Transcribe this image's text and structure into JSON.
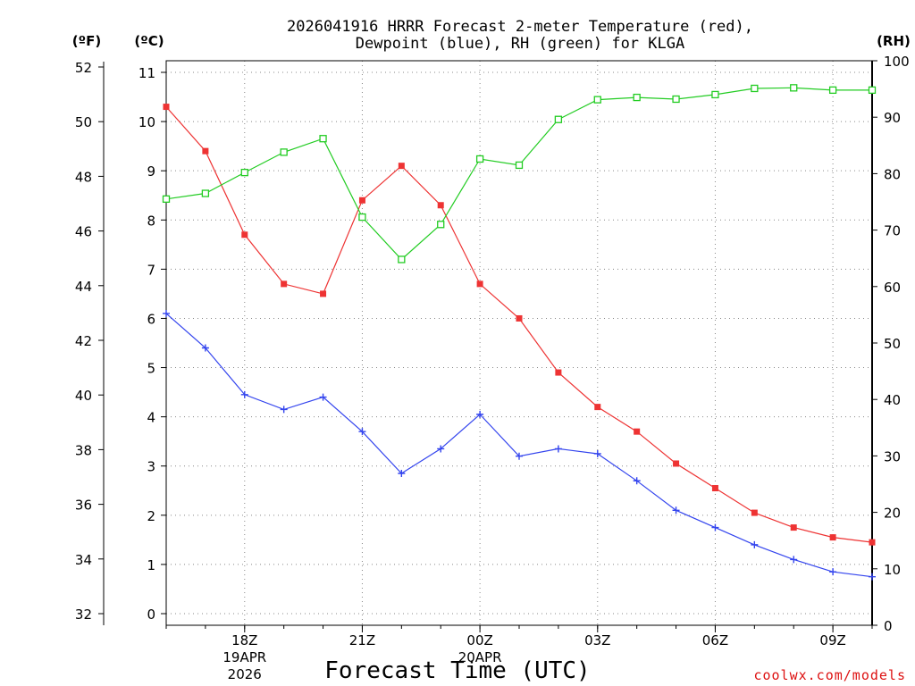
{
  "chart_data": {
    "type": "line",
    "title_line1": "2026041916 HRRR Forecast 2-meter Temperature (red),",
    "title_line2": "Dewpoint (blue), RH (green) for KLGA",
    "xlabel": "Forecast Time (UTC)",
    "credit": "coolwx.com/models",
    "units": {
      "fahrenheit": "(ºF)",
      "celsius": "(ºC)",
      "rh": "(RH)"
    },
    "x_hours": [
      16,
      17,
      18,
      19,
      20,
      21,
      22,
      23,
      24,
      25,
      26,
      27,
      28,
      29,
      30,
      31,
      32,
      33,
      34
    ],
    "x_tick_labels": [
      {
        "hour": 18,
        "label": "18Z",
        "date": "19APR",
        "year": "2026"
      },
      {
        "hour": 21,
        "label": "21Z"
      },
      {
        "hour": 24,
        "label": "00Z",
        "date": "20APR"
      },
      {
        "hour": 27,
        "label": "03Z"
      },
      {
        "hour": 30,
        "label": "06Z"
      },
      {
        "hour": 33,
        "label": "09Z"
      }
    ],
    "celsius_axis": {
      "min": 0,
      "max": 11,
      "ticks": [
        0,
        1,
        2,
        3,
        4,
        5,
        6,
        7,
        8,
        9,
        10,
        11
      ]
    },
    "fahrenheit_axis": {
      "min": 32,
      "max": 52,
      "ticks": [
        32,
        34,
        36,
        38,
        40,
        42,
        44,
        46,
        48,
        50,
        52
      ]
    },
    "rh_axis": {
      "min": 0,
      "max": 100,
      "ticks": [
        0,
        10,
        20,
        30,
        40,
        50,
        60,
        70,
        80,
        90,
        100
      ]
    },
    "series": [
      {
        "name": "2-meter Temperature",
        "unit": "C",
        "color": "#ee3333",
        "marker": "filled-square",
        "values": [
          10.3,
          9.4,
          7.7,
          6.7,
          6.5,
          8.4,
          9.1,
          8.3,
          6.7,
          6.0,
          4.9,
          4.2,
          3.7,
          3.05,
          2.55,
          2.05,
          1.75,
          1.55,
          1.45
        ]
      },
      {
        "name": "Dewpoint",
        "unit": "C",
        "color": "#3344ee",
        "marker": "plus",
        "values": [
          6.1,
          5.4,
          4.45,
          4.15,
          4.4,
          3.7,
          2.85,
          3.35,
          4.05,
          3.2,
          3.35,
          3.25,
          2.7,
          2.1,
          1.75,
          1.4,
          1.1,
          0.85,
          0.75
        ]
      },
      {
        "name": "RH",
        "unit": "%",
        "color": "#22cc22",
        "marker": "open-square",
        "values": [
          75.5,
          76.5,
          80.2,
          83.8,
          86.2,
          72.3,
          64.8,
          71.0,
          82.6,
          81.5,
          89.6,
          93.1,
          93.5,
          93.2,
          94.0,
          95.1,
          95.2,
          94.8,
          94.8
        ]
      }
    ]
  }
}
